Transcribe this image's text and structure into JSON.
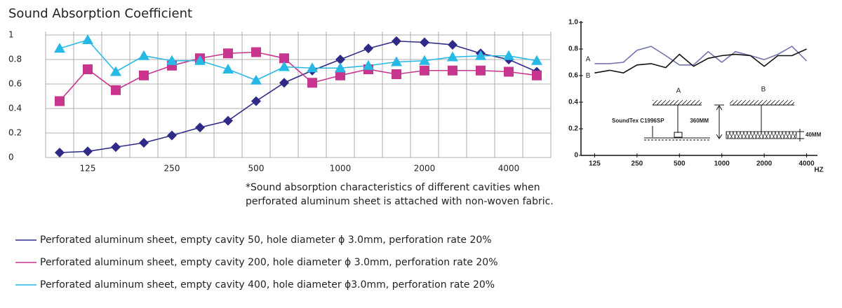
{
  "chart_data": [
    {
      "type": "line",
      "title": "Sound Absorption Coefficient",
      "categories": [
        null,
        "125",
        null,
        null,
        "250",
        null,
        null,
        "500",
        null,
        null,
        "1000",
        null,
        null,
        "2000",
        null,
        null,
        "4000",
        null
      ],
      "series": [
        {
          "name": "Perforated aluminum sheet, empty cavity 50, hole diameter ϕ 3.0mm, perforation rate 20%",
          "color": "#2e2a86",
          "marker": "diamond",
          "values": [
            0.04,
            0.05,
            0.085,
            0.12,
            0.18,
            0.245,
            0.3,
            0.46,
            0.61,
            0.71,
            0.8,
            0.89,
            0.95,
            0.94,
            0.92,
            0.85,
            0.8,
            0.7
          ]
        },
        {
          "name": "Perforated aluminum sheet, empty cavity 200, hole diameter ϕ 3.0mm, perforation rate 20%",
          "color": "#c8358f",
          "marker": "square",
          "values": [
            0.46,
            0.72,
            0.55,
            0.67,
            0.75,
            0.81,
            0.85,
            0.86,
            0.81,
            0.61,
            0.67,
            0.72,
            0.68,
            0.71,
            0.71,
            0.71,
            0.7,
            0.67
          ]
        },
        {
          "name": "Perforated aluminum sheet, empty cavity 400, hole diameter ϕ3.0mm, perforation rate 20%",
          "color": "#27b9e6",
          "marker": "triangle",
          "values": [
            0.89,
            0.96,
            0.7,
            0.83,
            0.79,
            0.79,
            0.72,
            0.63,
            0.74,
            0.73,
            0.73,
            0.75,
            0.78,
            0.79,
            0.82,
            0.83,
            0.83,
            0.79
          ]
        }
      ],
      "ylim": [
        0,
        1
      ],
      "yticks": [
        0,
        0.2,
        0.4,
        0.6,
        0.8,
        1
      ],
      "grid": true,
      "annotations": [
        "*Sound absorption characteristics of different cavities when",
        "perforated aluminum sheet is attached with non-woven fabric."
      ]
    },
    {
      "type": "line",
      "x": [
        125,
        160,
        200,
        250,
        315,
        400,
        500,
        630,
        800,
        1000,
        1250,
        1600,
        2000,
        2500,
        3150,
        4000
      ],
      "xscale": "log",
      "xlim": [
        100,
        5000
      ],
      "xticks": [
        125,
        250,
        500,
        1000,
        2000,
        4000
      ],
      "x_label": "HZ",
      "ylim": [
        0,
        1
      ],
      "yticks": [
        0,
        {
          "value": 0.2,
          "label": "0.2"
        },
        {
          "value": 0.4,
          "label": "0.4"
        },
        {
          "value": 0.6,
          "label": "0.6"
        },
        {
          "value": 0.8,
          "label": "0.8"
        },
        {
          "value": 1,
          "label": "1.0"
        }
      ],
      "grid": false,
      "series": [
        {
          "name": "A",
          "color": "#7373ae",
          "values": [
            0.69,
            0.69,
            0.7,
            0.79,
            0.82,
            0.75,
            0.68,
            0.68,
            0.78,
            0.7,
            0.78,
            0.75,
            0.72,
            0.76,
            0.82,
            0.71
          ]
        },
        {
          "name": "B",
          "color": "#111111",
          "values": [
            0.62,
            0.64,
            0.62,
            0.68,
            0.69,
            0.66,
            0.76,
            0.67,
            0.73,
            0.75,
            0.76,
            0.75,
            0.67,
            0.75,
            0.75,
            0.8
          ]
        }
      ],
      "annotations": [
        "A",
        "B",
        "SoundTex C1996SP",
        "360MM",
        "40MM"
      ]
    }
  ]
}
